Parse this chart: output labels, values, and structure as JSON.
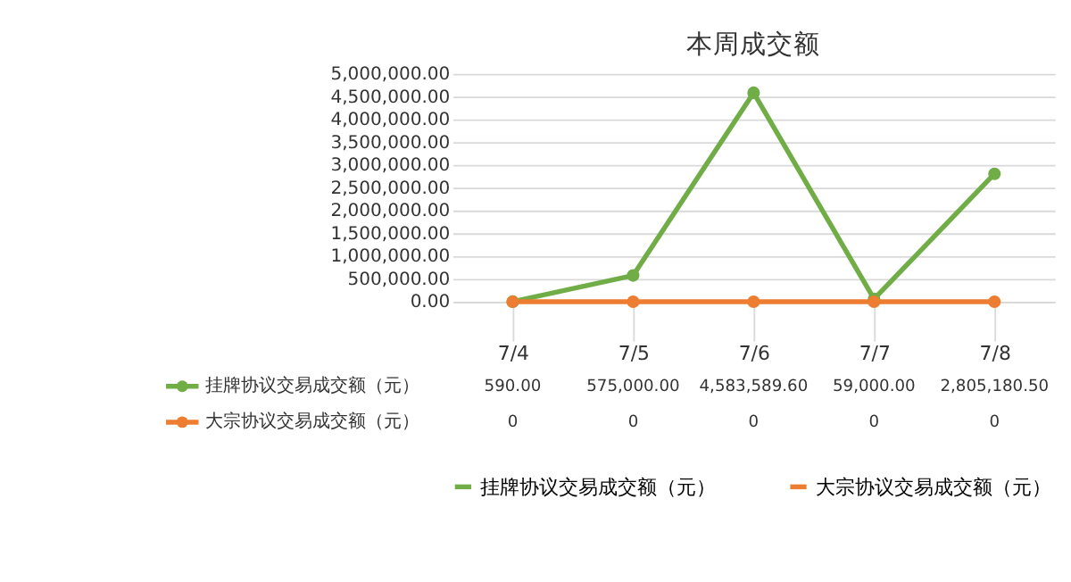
{
  "chart_data": {
    "type": "line",
    "title": "本周成交额",
    "categories": [
      "7/4",
      "7/5",
      "7/6",
      "7/7",
      "7/8"
    ],
    "series": [
      {
        "name": "挂牌协议交易成交额（元）",
        "color": "#70ad47",
        "values": [
          590,
          575000,
          4583589.6,
          59000,
          2805180.5
        ],
        "value_labels": [
          "590.00",
          "575,000.00",
          "4,583,589.60",
          "59,000.00",
          "2,805,180.50"
        ]
      },
      {
        "name": "大宗协议交易成交额（元）",
        "color": "#ed7d31",
        "values": [
          0,
          0,
          0,
          0,
          0
        ],
        "value_labels": [
          "0",
          "0",
          "0",
          "0",
          "0"
        ]
      }
    ],
    "ylim": [
      0,
      5000000
    ],
    "yticks": [
      {
        "value": 0,
        "label": "0.00"
      },
      {
        "value": 500000,
        "label": "500,000.00"
      },
      {
        "value": 1000000,
        "label": "1,000,000.00"
      },
      {
        "value": 1500000,
        "label": "1,500,000.00"
      },
      {
        "value": 2000000,
        "label": "2,000,000.00"
      },
      {
        "value": 2500000,
        "label": "2,500,000.00"
      },
      {
        "value": 3000000,
        "label": "3,000,000.00"
      },
      {
        "value": 3500000,
        "label": "3,500,000.00"
      },
      {
        "value": 4000000,
        "label": "4,000,000.00"
      },
      {
        "value": 4500000,
        "label": "4,500,000.00"
      },
      {
        "value": 5000000,
        "label": "5,000,000.00"
      }
    ],
    "grid": "y",
    "legend": "bottom",
    "marker": "circle",
    "line_style": "solid"
  }
}
